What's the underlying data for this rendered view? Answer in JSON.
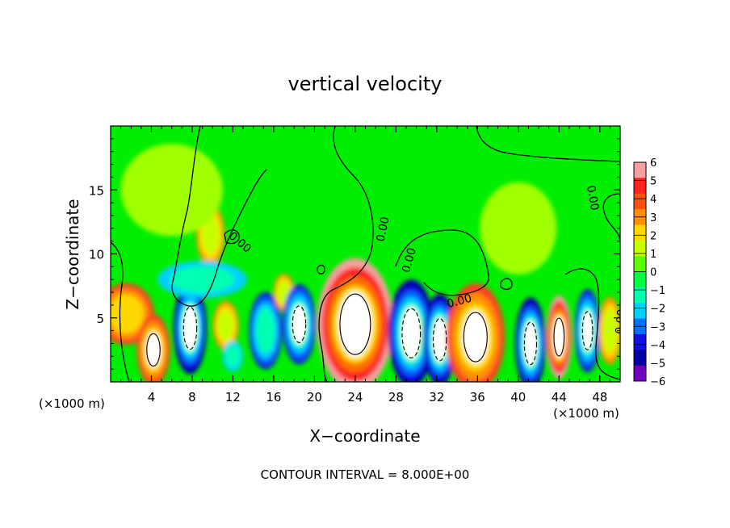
{
  "chart_data": {
    "type": "heatmap",
    "title": "vertical velocity",
    "xlabel": "X−coordinate",
    "ylabel": "Z−coordinate",
    "x_unit_left": "(×1000 m)",
    "x_unit_right": "(×1000 m)",
    "footer": "CONTOUR INTERVAL = 8.000E+00",
    "xlim": [
      0,
      50
    ],
    "ylim": [
      0,
      20
    ],
    "x_ticks": [
      4,
      8,
      12,
      16,
      20,
      24,
      28,
      32,
      36,
      40,
      44,
      48
    ],
    "y_ticks": [
      5,
      10,
      15
    ],
    "colorbar": {
      "range": [
        -6,
        6
      ],
      "labels": [
        "6",
        "5",
        "4",
        "3",
        "2",
        "1",
        "0",
        "−1",
        "−2",
        "−3",
        "−4",
        "−5",
        "−6"
      ],
      "colors": [
        "#f4a0a0",
        "#ff2020",
        "#ff5010",
        "#ff9000",
        "#ffd800",
        "#c8ff00",
        "#60ff00",
        "#00ff40",
        "#00ffb0",
        "#00d0ff",
        "#0070ff",
        "#1010e0",
        "#0000a0",
        "#7000c0"
      ]
    },
    "contour_labels": [
      "0.00",
      "0.00",
      "0.00",
      "0.00",
      "0.00",
      "0.00"
    ],
    "cells": [
      {
        "x": 1.5,
        "z": 5.3,
        "rx": 2.2,
        "rz": 2.0,
        "w": 5
      },
      {
        "x": 4.2,
        "z": 2.5,
        "rx": 1.3,
        "rz": 2.3,
        "w": 6
      },
      {
        "x": 7.8,
        "z": 4.2,
        "rx": 1.3,
        "rz": 3.0,
        "w": -7
      },
      {
        "x": 9.8,
        "z": 11.5,
        "rx": 1.1,
        "rz": 2.0,
        "w": 3
      },
      {
        "x": 11.3,
        "z": 4.4,
        "rx": 1.0,
        "rz": 1.6,
        "w": 3
      },
      {
        "x": 12.0,
        "z": 2.0,
        "rx": 0.8,
        "rz": 1.0,
        "w": -3
      },
      {
        "x": 15.2,
        "z": 4.0,
        "rx": 1.3,
        "rz": 2.5,
        "w": -5
      },
      {
        "x": 17.0,
        "z": 7.0,
        "rx": 0.8,
        "rz": 1.2,
        "w": 3
      },
      {
        "x": 18.5,
        "z": 4.5,
        "rx": 1.3,
        "rz": 2.6,
        "w": -6
      },
      {
        "x": 24.0,
        "z": 4.5,
        "rx": 3.0,
        "rz": 4.3,
        "w": 9
      },
      {
        "x": 29.5,
        "z": 3.8,
        "rx": 1.8,
        "rz": 3.5,
        "w": -8
      },
      {
        "x": 32.3,
        "z": 3.3,
        "rx": 1.3,
        "rz": 3.0,
        "w": -7
      },
      {
        "x": 35.8,
        "z": 3.5,
        "rx": 2.3,
        "rz": 3.5,
        "w": 6
      },
      {
        "x": 41.2,
        "z": 3.0,
        "rx": 1.2,
        "rz": 3.0,
        "w": -7
      },
      {
        "x": 44.0,
        "z": 3.5,
        "rx": 1.0,
        "rz": 2.7,
        "w": 7
      },
      {
        "x": 46.8,
        "z": 4.0,
        "rx": 1.0,
        "rz": 2.7,
        "w": -6
      },
      {
        "x": 49.0,
        "z": 4.0,
        "rx": 0.9,
        "rz": 2.2,
        "w": 3
      },
      {
        "x": 9.0,
        "z": 8.0,
        "rx": 3.5,
        "rz": 1.2,
        "w": -2
      },
      {
        "x": 40.0,
        "z": 12.0,
        "rx": 3.0,
        "rz": 3.0,
        "w": 1.2
      },
      {
        "x": 6.0,
        "z": 15.0,
        "rx": 4.0,
        "rz": 3.0,
        "w": 0.8
      }
    ]
  }
}
